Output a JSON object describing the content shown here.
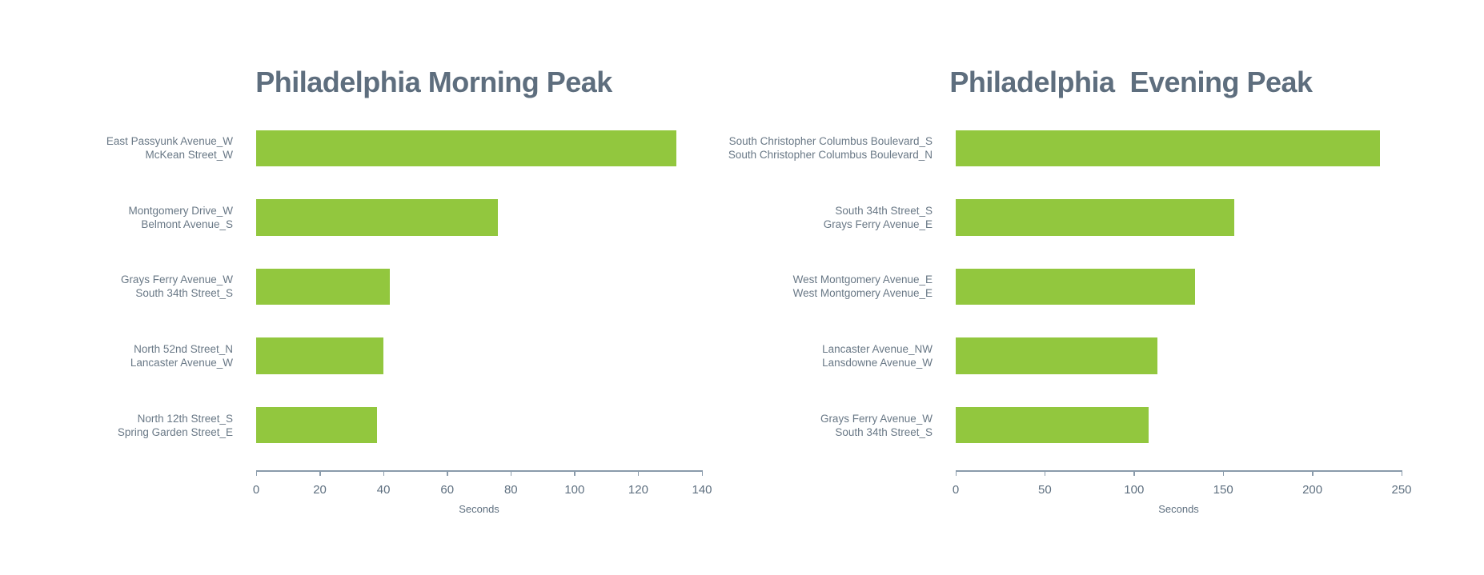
{
  "page": {
    "background": "#ffffff"
  },
  "colors": {
    "bar": "#92C73E",
    "title": "#5E6E7E",
    "category_label": "#697886",
    "tick_label": "#5F7080",
    "axis_line": "#8A9BAB"
  },
  "chart_data": [
    {
      "type": "bar",
      "orientation": "horizontal",
      "title": "Philadelphia Morning Peak",
      "xlabel": "Seconds",
      "categories": [
        [
          "East Passyunk Avenue_W",
          "McKean Street_W"
        ],
        [
          "Montgomery Drive_W",
          "Belmont Avenue_S"
        ],
        [
          "Grays Ferry Avenue_W",
          "South 34th Street_S"
        ],
        [
          "North 52nd Street_N",
          "Lancaster Avenue_W"
        ],
        [
          "North 12th Street_S",
          "Spring Garden Street_E"
        ]
      ],
      "values": [
        132,
        76,
        42,
        40,
        38
      ],
      "xlim": [
        0,
        140
      ],
      "xticks": [
        0,
        20,
        40,
        60,
        80,
        100,
        120,
        140
      ],
      "grid": false,
      "legend": "none"
    },
    {
      "type": "bar",
      "orientation": "horizontal",
      "title": "Philadelphia  Evening Peak",
      "xlabel": "Seconds",
      "categories": [
        [
          "South Christopher Columbus Boulevard_S",
          "South Christopher Columbus Boulevard_N"
        ],
        [
          "South 34th Street_S",
          "Grays Ferry Avenue_E"
        ],
        [
          "West Montgomery Avenue_E",
          "West Montgomery Avenue_E"
        ],
        [
          "Lancaster Avenue_NW",
          "Lansdowne Avenue_W"
        ],
        [
          "Grays Ferry Avenue_W",
          "South 34th Street_S"
        ]
      ],
      "values": [
        238,
        156,
        134,
        113,
        108
      ],
      "xlim": [
        0,
        250
      ],
      "xticks": [
        0,
        50,
        100,
        150,
        200,
        250
      ],
      "grid": false,
      "legend": "none"
    }
  ]
}
